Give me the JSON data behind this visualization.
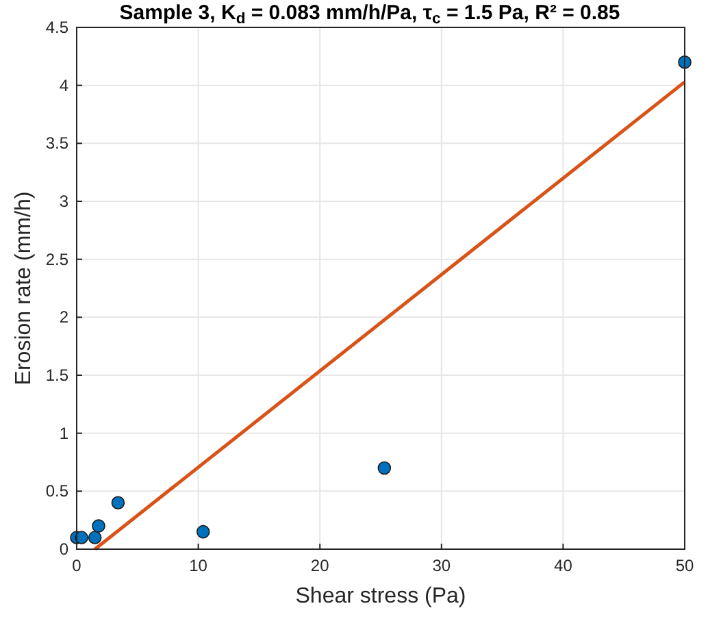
{
  "chart_data": {
    "type": "scatter",
    "title": "Sample 3, K$_{d}$ = 0.083 mm/h/Pa, τ$_{c}$ = 1.5 Pa, R² = 0.85",
    "xlabel": "Shear stress (Pa)",
    "ylabel": "Erosion rate (mm/h)",
    "xlim": [
      0,
      50
    ],
    "ylim": [
      0,
      4.5
    ],
    "xticks": [
      0,
      10,
      20,
      30,
      40,
      50
    ],
    "yticks": [
      0,
      0.5,
      1,
      1.5,
      2,
      2.5,
      3,
      3.5,
      4,
      4.5
    ],
    "grid": true,
    "series": [
      {
        "marker": "circle",
        "color": "#0072bd",
        "x": [
          0,
          0.4,
          1.5,
          1.8,
          3.4,
          10.4,
          25.3,
          50
        ],
        "values": [
          0.1,
          0.1,
          0.1,
          0.2,
          0.4,
          0.15,
          0.7,
          4.2
        ]
      },
      {
        "type": "line",
        "color": "#d95319",
        "x": [
          1.5,
          50
        ],
        "values": [
          0,
          4.03
        ],
        "line_style": "solid"
      }
    ]
  }
}
